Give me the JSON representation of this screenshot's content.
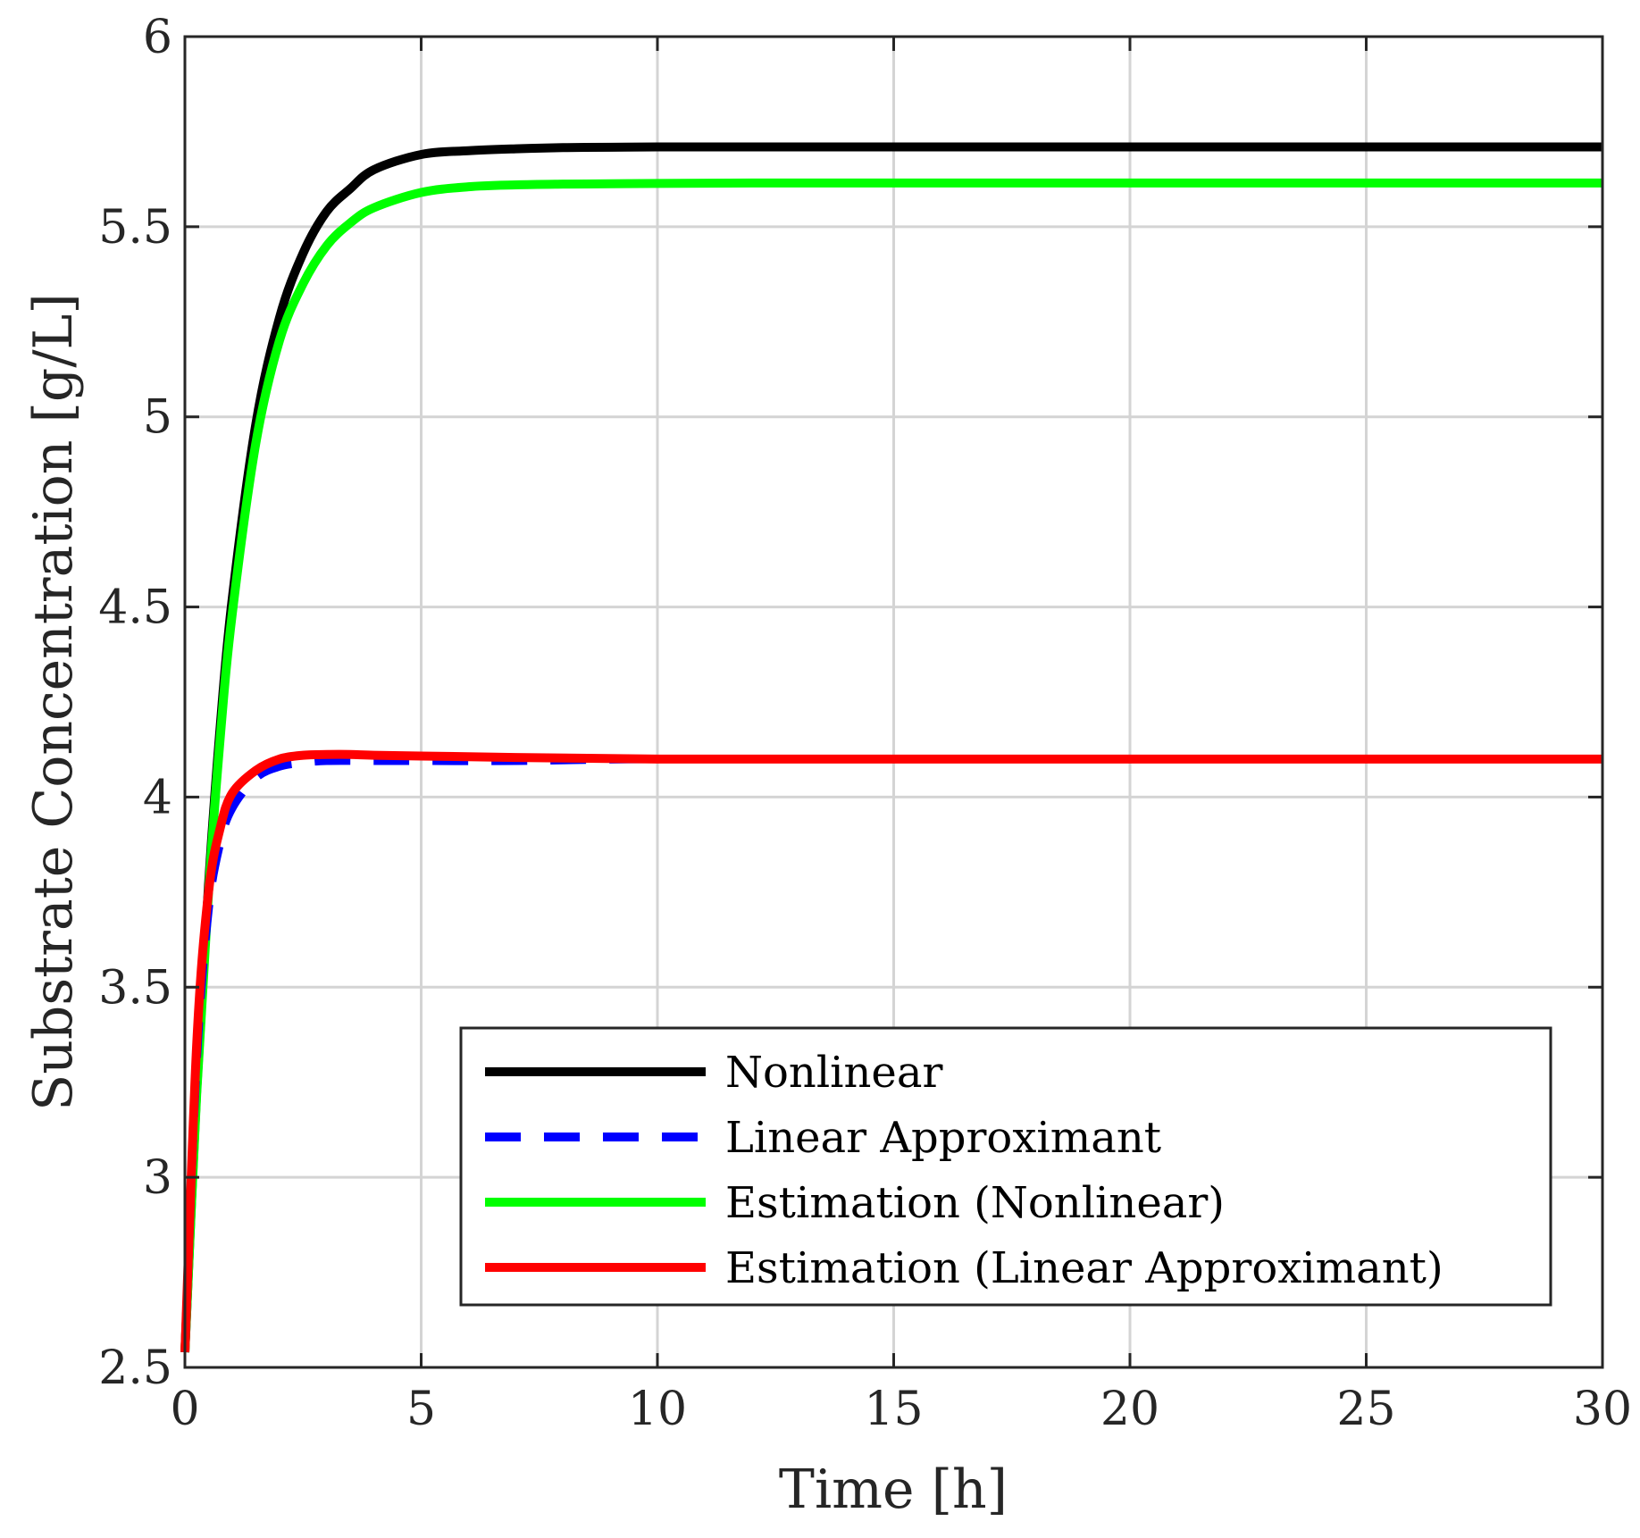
{
  "chart_data": {
    "type": "line",
    "title": "",
    "xlabel": "Time [h]",
    "ylabel": "Substrate Concentration [g/L]",
    "xlim": [
      0,
      30
    ],
    "ylim": [
      2.5,
      6
    ],
    "xticks": [
      0,
      5,
      10,
      15,
      20,
      25,
      30
    ],
    "xtick_labels": [
      "0",
      "5",
      "10",
      "15",
      "20",
      "25",
      "30"
    ],
    "yticks": [
      2.5,
      3,
      3.5,
      4,
      4.5,
      5,
      5.5,
      6
    ],
    "ytick_labels": [
      "2.5",
      "3",
      "3.5",
      "4",
      "4.5",
      "5",
      "5.5",
      "6"
    ],
    "grid": true,
    "legend_position": "bottom-right",
    "series": [
      {
        "name": "Nonlinear",
        "color": "#000000",
        "style": "solid",
        "x": [
          0,
          0.25,
          0.5,
          0.75,
          1,
          1.5,
          2,
          2.5,
          3,
          3.5,
          4,
          5,
          6,
          7,
          8,
          9,
          10,
          12,
          15,
          20,
          25,
          30
        ],
        "y": [
          2.54,
          3.23,
          3.77,
          4.19,
          4.52,
          4.98,
          5.26,
          5.43,
          5.54,
          5.6,
          5.65,
          5.69,
          5.7,
          5.705,
          5.708,
          5.709,
          5.71,
          5.71,
          5.71,
          5.71,
          5.71,
          5.71
        ]
      },
      {
        "name": "Linear Approximant",
        "color": "#0000ff",
        "style": "dashed",
        "x": [
          0,
          0.25,
          0.5,
          0.75,
          1,
          1.5,
          2,
          2.5,
          3,
          4,
          5,
          7,
          10,
          15,
          20,
          25,
          30
        ],
        "y": [
          2.54,
          3.3,
          3.7,
          3.88,
          3.97,
          4.05,
          4.08,
          4.09,
          4.095,
          4.095,
          4.095,
          4.095,
          4.1,
          4.1,
          4.1,
          4.1,
          4.1
        ]
      },
      {
        "name": "Estimation (Nonlinear)",
        "color": "#00ff00",
        "style": "solid",
        "x": [
          0,
          0.25,
          0.5,
          0.75,
          1,
          1.5,
          2,
          2.5,
          3,
          3.5,
          4,
          5,
          6,
          7,
          8,
          9,
          10,
          12,
          15,
          20,
          25,
          30
        ],
        "y": [
          2.54,
          3.22,
          3.75,
          4.16,
          4.48,
          4.93,
          5.2,
          5.35,
          5.45,
          5.51,
          5.55,
          5.59,
          5.605,
          5.61,
          5.612,
          5.613,
          5.614,
          5.615,
          5.615,
          5.615,
          5.615,
          5.615
        ]
      },
      {
        "name": "Estimation (Linear Approximant)",
        "color": "#ff0000",
        "style": "solid",
        "x": [
          0,
          0.25,
          0.5,
          0.75,
          1,
          1.5,
          2,
          2.5,
          3,
          3.5,
          4,
          5,
          7,
          10,
          15,
          20,
          25,
          30
        ],
        "y": [
          2.54,
          3.35,
          3.75,
          3.92,
          4.01,
          4.07,
          4.1,
          4.11,
          4.112,
          4.112,
          4.11,
          4.108,
          4.104,
          4.1,
          4.1,
          4.1,
          4.1,
          4.1
        ]
      }
    ]
  }
}
